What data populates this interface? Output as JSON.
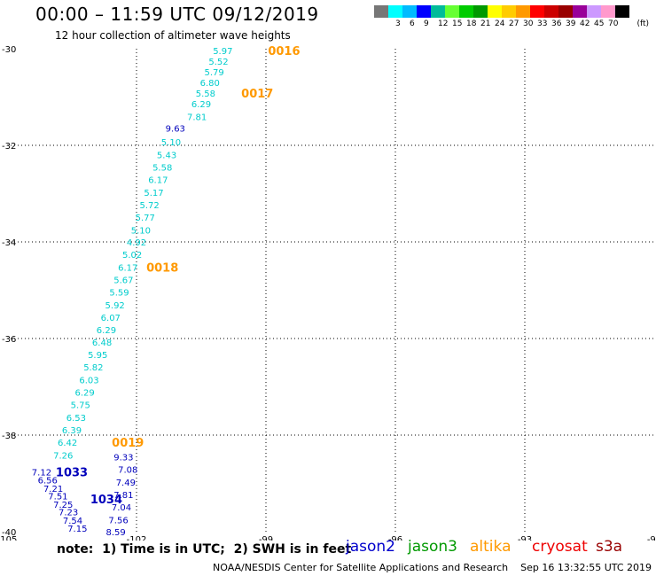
{
  "header": {
    "title": "00:00 – 11:59 UTC 09/12/2019",
    "subtitle": "12 hour collection of altimeter wave heights"
  },
  "colorbar": {
    "unit": "(ft)",
    "swatches": [
      {
        "color": "#777777",
        "label": ""
      },
      {
        "color": "#00ffff",
        "label": "3"
      },
      {
        "color": "#00bbff",
        "label": "6"
      },
      {
        "color": "#0000ff",
        "label": "9"
      },
      {
        "color": "#00bb99",
        "label": "12"
      },
      {
        "color": "#66ff33",
        "label": "15"
      },
      {
        "color": "#00cc00",
        "label": "18"
      },
      {
        "color": "#009900",
        "label": "21"
      },
      {
        "color": "#ffff00",
        "label": "24"
      },
      {
        "color": "#ffcc00",
        "label": "27"
      },
      {
        "color": "#ff9900",
        "label": "30"
      },
      {
        "color": "#ff0000",
        "label": "33"
      },
      {
        "color": "#cc0000",
        "label": "36"
      },
      {
        "color": "#990000",
        "label": "39"
      },
      {
        "color": "#990099",
        "label": "42"
      },
      {
        "color": "#cc99ff",
        "label": "45"
      },
      {
        "color": "#ff99cc",
        "label": "70"
      },
      {
        "color": "#000000",
        "label": ""
      }
    ]
  },
  "chart_data": {
    "type": "scatter",
    "xlim": [
      -105,
      -90
    ],
    "ylim": [
      -40,
      -30
    ],
    "x_ticks": [
      -105,
      -102,
      -99,
      -96,
      -93,
      -90
    ],
    "y_ticks": [
      -30,
      -32,
      -34,
      -36,
      -38,
      -40
    ],
    "grid": true,
    "series": [
      {
        "name": "jason2",
        "color": "#0000bb",
        "points": [
          {
            "x": -101.1,
            "y": -31.64,
            "v": "9.63"
          },
          {
            "x": -102.3,
            "y": -38.45,
            "v": "9.33"
          },
          {
            "x": -104.2,
            "y": -38.76,
            "v": "7.12"
          },
          {
            "x": -104.06,
            "y": -38.93,
            "v": "6.56"
          },
          {
            "x": -103.93,
            "y": -39.1,
            "v": "7.21"
          },
          {
            "x": -103.82,
            "y": -39.26,
            "v": "7.51"
          },
          {
            "x": -103.7,
            "y": -39.43,
            "v": "7.25"
          },
          {
            "x": -103.58,
            "y": -39.59,
            "v": "7.23"
          },
          {
            "x": -103.48,
            "y": -39.76,
            "v": "7.54"
          },
          {
            "x": -103.37,
            "y": -39.93,
            "v": "7.15"
          },
          {
            "x": -102.2,
            "y": -38.71,
            "v": "7.08"
          },
          {
            "x": -102.25,
            "y": -38.97,
            "v": "7.49"
          },
          {
            "x": -102.3,
            "y": -39.23,
            "v": "7.81"
          },
          {
            "x": -102.35,
            "y": -39.49,
            "v": "7.04"
          },
          {
            "x": -102.42,
            "y": -39.75,
            "v": "7.56"
          },
          {
            "x": -102.48,
            "y": -40.0,
            "v": "8.59"
          }
        ]
      },
      {
        "name": "altika",
        "color": "#00cccc",
        "points": [
          {
            "x": -100.0,
            "y": -30.04,
            "v": "5.97"
          },
          {
            "x": -100.1,
            "y": -30.26,
            "v": "5.52"
          },
          {
            "x": -100.2,
            "y": -30.48,
            "v": "5.79"
          },
          {
            "x": -100.3,
            "y": -30.7,
            "v": "6.80"
          },
          {
            "x": -100.4,
            "y": -30.92,
            "v": "5.58"
          },
          {
            "x": -100.5,
            "y": -31.14,
            "v": "6.29"
          },
          {
            "x": -100.6,
            "y": -31.4,
            "v": "7.81"
          },
          {
            "x": -101.2,
            "y": -31.93,
            "v": "5.10"
          },
          {
            "x": -101.3,
            "y": -32.19,
            "v": "5.43"
          },
          {
            "x": -101.4,
            "y": -32.45,
            "v": "5.58"
          },
          {
            "x": -101.5,
            "y": -32.71,
            "v": "6.17"
          },
          {
            "x": -101.6,
            "y": -32.97,
            "v": "5.17"
          },
          {
            "x": -101.7,
            "y": -33.23,
            "v": "5.72"
          },
          {
            "x": -101.8,
            "y": -33.49,
            "v": "5.77"
          },
          {
            "x": -101.9,
            "y": -33.75,
            "v": "5.10"
          },
          {
            "x": -102.0,
            "y": -34.0,
            "v": "4.92"
          },
          {
            "x": -102.1,
            "y": -34.26,
            "v": "5.02"
          },
          {
            "x": -102.2,
            "y": -34.52,
            "v": "6.17"
          },
          {
            "x": -102.3,
            "y": -34.78,
            "v": "5.67"
          },
          {
            "x": -102.4,
            "y": -35.04,
            "v": "5.59"
          },
          {
            "x": -102.5,
            "y": -35.3,
            "v": "5.92"
          },
          {
            "x": -102.6,
            "y": -35.56,
            "v": "6.07"
          },
          {
            "x": -102.7,
            "y": -35.82,
            "v": "6.29"
          },
          {
            "x": -102.8,
            "y": -36.07,
            "v": "6.48"
          },
          {
            "x": -102.9,
            "y": -36.33,
            "v": "5.95"
          },
          {
            "x": -103.0,
            "y": -36.59,
            "v": "5.82"
          },
          {
            "x": -103.1,
            "y": -36.85,
            "v": "6.03"
          },
          {
            "x": -103.2,
            "y": -37.11,
            "v": "6.29"
          },
          {
            "x": -103.3,
            "y": -37.37,
            "v": "5.75"
          },
          {
            "x": -103.4,
            "y": -37.63,
            "v": "6.53"
          },
          {
            "x": -103.5,
            "y": -37.89,
            "v": "6.39"
          },
          {
            "x": -103.6,
            "y": -38.15,
            "v": "6.42"
          },
          {
            "x": -103.7,
            "y": -38.41,
            "v": "7.26"
          }
        ]
      }
    ],
    "time_labels": [
      {
        "x": -98.58,
        "y": -30.04,
        "text": "0016",
        "color": "#ff9900"
      },
      {
        "x": -99.2,
        "y": -30.92,
        "text": "0017",
        "color": "#ff9900"
      },
      {
        "x": -101.4,
        "y": -34.52,
        "text": "0018",
        "color": "#ff9900"
      },
      {
        "x": -102.2,
        "y": -38.15,
        "text": "0019",
        "color": "#ff9900"
      },
      {
        "x": -103.5,
        "y": -38.76,
        "text": "1033",
        "color": "#0000bb"
      },
      {
        "x": -102.7,
        "y": -39.32,
        "text": "1034",
        "color": "#0000bb"
      }
    ]
  },
  "footer": {
    "note": "note:  1) Time is in UTC;  2) SWH is in feet",
    "satellites": [
      {
        "name": "jason2",
        "color": "#0000cc"
      },
      {
        "name": "jason3",
        "color": "#009900"
      },
      {
        "name": "altika",
        "color": "#ff9900"
      },
      {
        "name": "cryosat",
        "color": "#ee0000"
      },
      {
        "name": "s3a",
        "color": "#990000"
      }
    ],
    "credit": "NOAA/NESDIS Center for Satellite Applications and Research    Sep 16 13:32:55 UTC 2019"
  }
}
